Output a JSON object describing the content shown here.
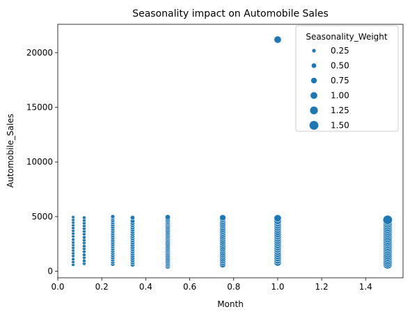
{
  "chart_data": {
    "type": "scatter",
    "title": "Seasonality impact on Automobile Sales",
    "xlabel": "Month",
    "ylabel": "Automobile_Sales",
    "xlim": [
      0.0,
      1.57
    ],
    "ylim": [
      -600,
      22600
    ],
    "xticks": [
      {
        "value": 0.0,
        "label": "0.0"
      },
      {
        "value": 0.2,
        "label": "0.2"
      },
      {
        "value": 0.4,
        "label": "0.4"
      },
      {
        "value": 0.6,
        "label": "0.6"
      },
      {
        "value": 0.8,
        "label": "0.8"
      },
      {
        "value": 1.0,
        "label": "1.0"
      },
      {
        "value": 1.2,
        "label": "1.2"
      },
      {
        "value": 1.4,
        "label": "1.4"
      }
    ],
    "yticks": [
      {
        "value": 0,
        "label": "0"
      },
      {
        "value": 5000,
        "label": "5000"
      },
      {
        "value": 10000,
        "label": "10000"
      },
      {
        "value": 15000,
        "label": "15000"
      },
      {
        "value": 20000,
        "label": "20000"
      }
    ],
    "grid": false,
    "color": "#1f77b4",
    "legend": {
      "title": "Seasonality_Weight",
      "placement": "top-right",
      "entries": [
        {
          "label": "0.25",
          "weight": 0.25
        },
        {
          "label": "0.50",
          "weight": 0.5
        },
        {
          "label": "0.75",
          "weight": 0.75
        },
        {
          "label": "1.00",
          "weight": 1.0
        },
        {
          "label": "1.25",
          "weight": 1.25
        },
        {
          "label": "1.50",
          "weight": 1.5
        }
      ]
    },
    "series": [
      {
        "x": 0.07,
        "weight": 0.07,
        "y": [
          600,
          850,
          1100,
          1400,
          1650,
          1900,
          2150,
          2400,
          2650,
          2900,
          3200,
          3450,
          3700,
          3950,
          4200,
          4450,
          4700,
          4950
        ]
      },
      {
        "x": 0.12,
        "weight": 0.12,
        "y": [
          700,
          950,
          1250,
          1500,
          1800,
          2050,
          2300,
          2600,
          2850,
          3100,
          3400,
          3650,
          3900,
          4150,
          4400,
          4650,
          4900
        ]
      },
      {
        "x": 0.25,
        "weight": 0.25,
        "y": [
          650,
          850,
          1050,
          1250,
          1450,
          1650,
          1850,
          2050,
          2250,
          2450,
          2650,
          2850,
          3050,
          3250,
          3450,
          3650,
          3850,
          4050,
          4250,
          4450,
          4650,
          4850,
          5000
        ]
      },
      {
        "x": 0.34,
        "weight": 0.34,
        "y": [
          600,
          800,
          1000,
          1200,
          1400,
          1600,
          1800,
          2000,
          2200,
          2400,
          2600,
          2800,
          3000,
          3200,
          3400,
          3600,
          3800,
          4000,
          4200,
          4400,
          4600,
          4900
        ]
      },
      {
        "x": 0.5,
        "weight": 0.5,
        "y": [
          450,
          600,
          750,
          900,
          1050,
          1200,
          1350,
          1500,
          1650,
          1800,
          1950,
          2100,
          2250,
          2400,
          2550,
          2700,
          2850,
          3000,
          3150,
          3300,
          3450,
          3600,
          3750,
          3900,
          4050,
          4200,
          4350,
          4500,
          4650,
          4800,
          4950
        ]
      },
      {
        "x": 0.75,
        "weight": 0.75,
        "y": [
          600,
          780,
          960,
          1140,
          1320,
          1500,
          1680,
          1860,
          2040,
          2220,
          2400,
          2580,
          2760,
          2940,
          3120,
          3300,
          3480,
          3660,
          3840,
          4020,
          4200,
          4380,
          4560,
          4740,
          4900
        ]
      },
      {
        "x": 1.0,
        "weight": 1.0,
        "y": [
          800,
          1000,
          1200,
          1400,
          1600,
          1800,
          2000,
          2200,
          2400,
          2600,
          2800,
          3000,
          3200,
          3400,
          3600,
          3800,
          4000,
          4200,
          4400,
          4600,
          4850,
          21200
        ]
      },
      {
        "x": 1.5,
        "weight": 1.5,
        "y": [
          650,
          820,
          990,
          1160,
          1330,
          1500,
          1670,
          1840,
          2010,
          2180,
          2350,
          2520,
          2690,
          2860,
          3030,
          3200,
          3370,
          3540,
          3710,
          3880,
          4050,
          4220,
          4390,
          4560,
          4700
        ]
      }
    ]
  }
}
